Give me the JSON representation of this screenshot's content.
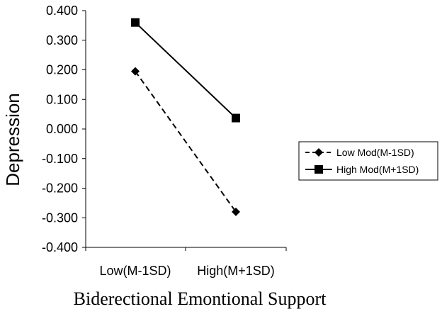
{
  "chart_data": {
    "type": "line",
    "categories": [
      "Low(M-1SD)",
      "High(M+1SD)"
    ],
    "series": [
      {
        "name": "Low Mod(M-1SD)",
        "values": [
          0.195,
          -0.28
        ],
        "line_style": "dashed",
        "marker": "diamond"
      },
      {
        "name": "High Mod(M+1SD)",
        "values": [
          0.36,
          0.037
        ],
        "line_style": "solid",
        "marker": "square"
      }
    ],
    "xlabel": "Biderectional Emontional Support",
    "ylabel": "Depression",
    "ylim": [
      -0.4,
      0.4
    ],
    "yticks": [
      "0.400",
      "0.300",
      "0.200",
      "0.100",
      "0.000",
      "-0.100",
      "-0.200",
      "-0.300",
      "-0.400"
    ],
    "grid": false,
    "legend_position": "right",
    "colors": {
      "line": "#000000",
      "background": "#ffffff"
    }
  }
}
